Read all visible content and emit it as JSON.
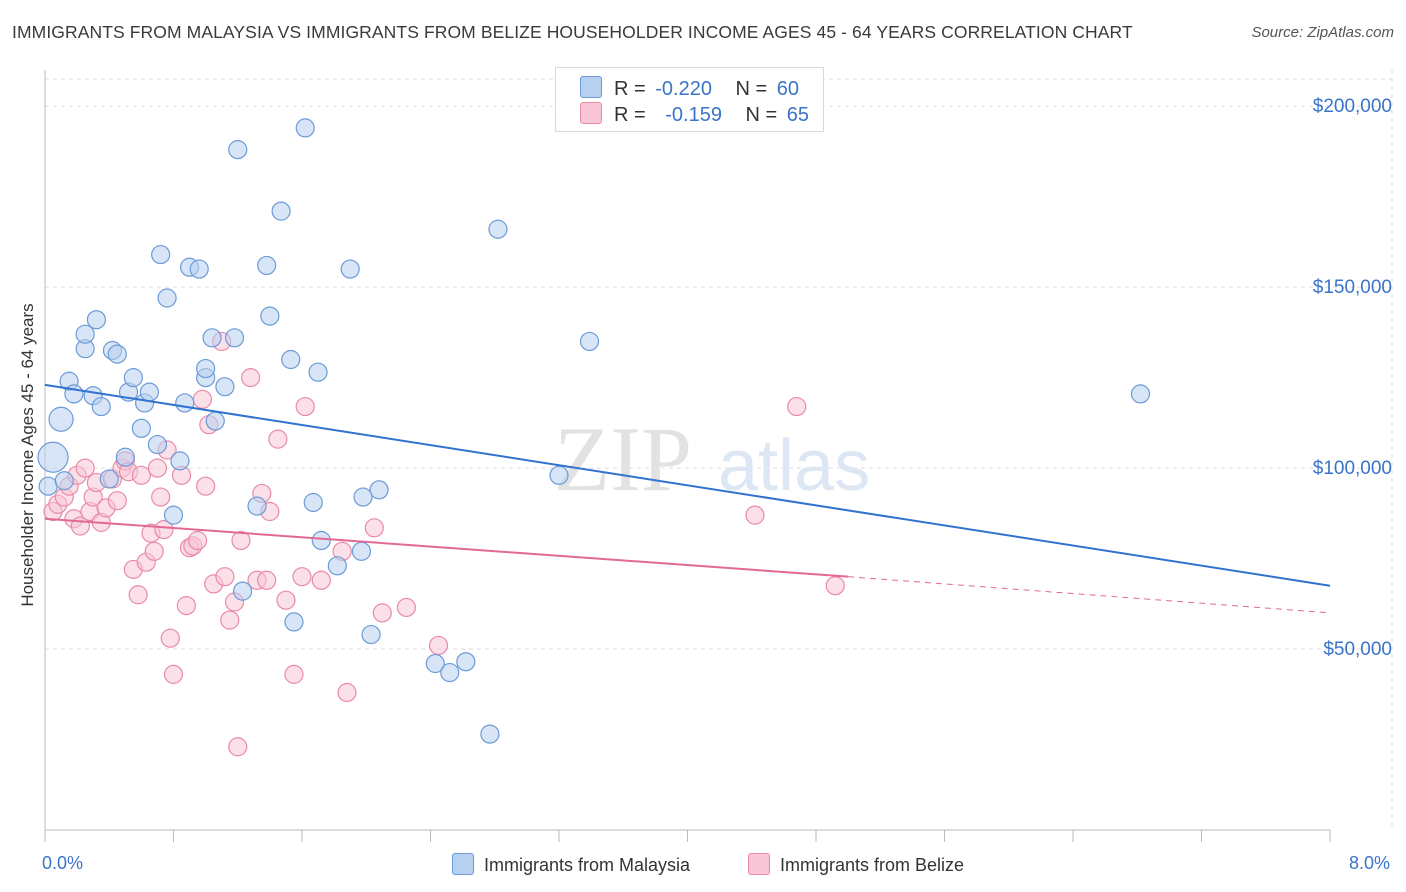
{
  "title": "IMMIGRANTS FROM MALAYSIA VS IMMIGRANTS FROM BELIZE HOUSEHOLDER INCOME AGES 45 - 64 YEARS CORRELATION CHART",
  "source": "Source: ZipAtlas.com",
  "watermark": {
    "zip": "ZIP",
    "atlas": "atlas"
  },
  "legend": {
    "r_label": "R =",
    "n_label": "N =",
    "malaysia": {
      "r": "-0.220",
      "n": "60"
    },
    "belize": {
      "r": "-0.159",
      "n": "65"
    }
  },
  "bottom_legend": {
    "malaysia": "Immigrants from Malaysia",
    "belize": "Immigrants from Belize"
  },
  "colors": {
    "malaysia_fill": "#b8d0f0",
    "malaysia_stroke": "#6b9bd8",
    "malaysia_line": "#2f72cf",
    "belize_fill": "#f8c6d6",
    "belize_stroke": "#ea8aaa",
    "belize_line": "#e26a92",
    "tick_text": "#3a74c9",
    "grid": "#dedede"
  },
  "chart_data": {
    "type": "scatter",
    "title": "IMMIGRANTS FROM MALAYSIA VS IMMIGRANTS FROM BELIZE HOUSEHOLDER INCOME AGES 45 - 64 YEARS CORRELATION CHART",
    "xlabel": "",
    "ylabel": "Householder Income Ages 45 - 64 years",
    "xlim": [
      0,
      8
    ],
    "ylim": [
      0,
      210000
    ],
    "x_tick_labels": [
      "0.0%",
      "8.0%"
    ],
    "y_ticks": [
      50000,
      100000,
      150000,
      200000
    ],
    "y_tick_labels": [
      "$50,000",
      "$100,000",
      "$150,000",
      "$200,000"
    ],
    "grid": true,
    "legend_position": "top-center",
    "series": [
      {
        "name": "Immigrants from Malaysia",
        "r": -0.22,
        "n": 60,
        "trend": {
          "x": [
            0.0,
            8.0
          ],
          "y": [
            123000,
            67500
          ]
        },
        "points": [
          [
            0.05,
            103000
          ],
          [
            0.1,
            113500
          ],
          [
            0.15,
            124000
          ],
          [
            0.18,
            120500
          ],
          [
            0.25,
            133000
          ],
          [
            0.25,
            137000
          ],
          [
            0.3,
            120000
          ],
          [
            0.32,
            141000
          ],
          [
            0.35,
            117000
          ],
          [
            0.42,
            132500
          ],
          [
            0.45,
            131500
          ],
          [
            0.5,
            103000
          ],
          [
            0.4,
            97000
          ],
          [
            0.52,
            121000
          ],
          [
            0.55,
            125000
          ],
          [
            0.6,
            111000
          ],
          [
            0.62,
            118000
          ],
          [
            0.65,
            121000
          ],
          [
            0.7,
            106500
          ],
          [
            0.72,
            159000
          ],
          [
            0.76,
            147000
          ],
          [
            0.8,
            87000
          ],
          [
            0.84,
            102000
          ],
          [
            0.87,
            118000
          ],
          [
            0.9,
            155500
          ],
          [
            0.96,
            155000
          ],
          [
            1.0,
            125000
          ],
          [
            1.0,
            127500
          ],
          [
            1.04,
            136000
          ],
          [
            1.06,
            113000
          ],
          [
            1.12,
            122500
          ],
          [
            1.18,
            136000
          ],
          [
            1.2,
            188000
          ],
          [
            1.23,
            66000
          ],
          [
            1.32,
            89500
          ],
          [
            1.38,
            156000
          ],
          [
            1.4,
            142000
          ],
          [
            1.47,
            171000
          ],
          [
            1.53,
            130000
          ],
          [
            1.55,
            57500
          ],
          [
            1.62,
            194000
          ],
          [
            1.67,
            90500
          ],
          [
            1.7,
            126500
          ],
          [
            1.72,
            80000
          ],
          [
            1.82,
            73000
          ],
          [
            1.9,
            155000
          ],
          [
            1.97,
            77000
          ],
          [
            1.98,
            92000
          ],
          [
            2.03,
            54000
          ],
          [
            2.08,
            94000
          ],
          [
            2.43,
            46000
          ],
          [
            2.52,
            43500
          ],
          [
            2.62,
            46500
          ],
          [
            2.77,
            26500
          ],
          [
            2.82,
            166000
          ],
          [
            3.2,
            98000
          ],
          [
            3.39,
            135000
          ],
          [
            6.82,
            120500
          ],
          [
            0.02,
            95000
          ],
          [
            0.12,
            96500
          ]
        ]
      },
      {
        "name": "Immigrants from Belize",
        "r": -0.159,
        "n": 65,
        "trend": {
          "x": [
            0.0,
            5.0
          ],
          "y": [
            86000,
            70000
          ]
        },
        "trend_dashed": {
          "x": [
            5.0,
            8.0
          ],
          "y": [
            70000,
            60000
          ]
        },
        "points": [
          [
            0.05,
            88000
          ],
          [
            0.08,
            90000
          ],
          [
            0.12,
            92000
          ],
          [
            0.15,
            95000
          ],
          [
            0.18,
            86000
          ],
          [
            0.2,
            98000
          ],
          [
            0.22,
            84000
          ],
          [
            0.25,
            100000
          ],
          [
            0.28,
            88000
          ],
          [
            0.3,
            92000
          ],
          [
            0.32,
            96000
          ],
          [
            0.35,
            85000
          ],
          [
            0.38,
            89000
          ],
          [
            0.42,
            97000
          ],
          [
            0.45,
            91000
          ],
          [
            0.48,
            100000
          ],
          [
            0.5,
            102000
          ],
          [
            0.52,
            99000
          ],
          [
            0.55,
            72000
          ],
          [
            0.58,
            65000
          ],
          [
            0.6,
            98000
          ],
          [
            0.63,
            74000
          ],
          [
            0.66,
            82000
          ],
          [
            0.68,
            77000
          ],
          [
            0.7,
            100000
          ],
          [
            0.72,
            92000
          ],
          [
            0.74,
            83000
          ],
          [
            0.76,
            105000
          ],
          [
            0.78,
            53000
          ],
          [
            0.8,
            43000
          ],
          [
            0.85,
            98000
          ],
          [
            0.88,
            62000
          ],
          [
            0.9,
            78000
          ],
          [
            0.92,
            78500
          ],
          [
            0.95,
            80000
          ],
          [
            0.98,
            119000
          ],
          [
            1.0,
            95000
          ],
          [
            1.02,
            112000
          ],
          [
            1.05,
            68000
          ],
          [
            1.1,
            135000
          ],
          [
            1.12,
            70000
          ],
          [
            1.15,
            58000
          ],
          [
            1.18,
            63000
          ],
          [
            1.2,
            23000
          ],
          [
            1.22,
            80000
          ],
          [
            1.28,
            125000
          ],
          [
            1.32,
            69000
          ],
          [
            1.35,
            93000
          ],
          [
            1.38,
            69000
          ],
          [
            1.4,
            88000
          ],
          [
            1.45,
            108000
          ],
          [
            1.5,
            63500
          ],
          [
            1.55,
            43000
          ],
          [
            1.6,
            70000
          ],
          [
            1.62,
            117000
          ],
          [
            1.72,
            69000
          ],
          [
            1.85,
            77000
          ],
          [
            1.88,
            38000
          ],
          [
            2.05,
            83500
          ],
          [
            2.1,
            60000
          ],
          [
            2.25,
            61500
          ],
          [
            2.45,
            51000
          ],
          [
            4.42,
            87000
          ],
          [
            4.68,
            117000
          ],
          [
            4.92,
            67500
          ]
        ]
      }
    ]
  }
}
